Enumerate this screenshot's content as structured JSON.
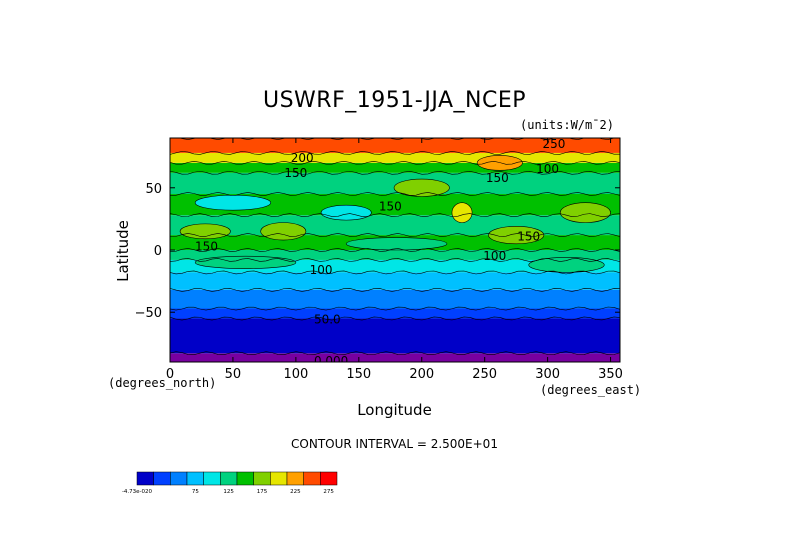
{
  "chart_data": {
    "type": "heatmap",
    "title": "USWRF_1951-JJA_NCEP",
    "units": "(units:W/m^2)",
    "units_display": "(units:W/m¯2)",
    "xlabel": "Longitude",
    "ylabel": "Latitude",
    "x_unit_label": "(degrees_east)",
    "y_unit_label": "(degrees_north)",
    "xlim": [
      0,
      357.5
    ],
    "ylim": [
      -90,
      90
    ],
    "x_ticks": [
      "0",
      "50",
      "100",
      "150",
      "200",
      "250",
      "300",
      "350"
    ],
    "x_tick_values": [
      0,
      50,
      100,
      150,
      200,
      250,
      300,
      350
    ],
    "y_ticks": [
      "50",
      "0",
      "-50"
    ],
    "y_tick_values": [
      50,
      0,
      -50
    ],
    "contour_interval_text": "CONTOUR INTERVAL = 2.500E+01",
    "contour_labels": [
      {
        "text": "250",
        "lon": 305,
        "lat": 85
      },
      {
        "text": "200",
        "lon": 105,
        "lat": 74
      },
      {
        "text": "150",
        "lon": 100,
        "lat": 62
      },
      {
        "text": "150",
        "lon": 175,
        "lat": 35
      },
      {
        "text": "150",
        "lon": 260,
        "lat": 58
      },
      {
        "text": "150",
        "lon": 29,
        "lat": 3
      },
      {
        "text": "150",
        "lon": 285,
        "lat": 11
      },
      {
        "text": "100",
        "lon": 120,
        "lat": -16
      },
      {
        "text": "100",
        "lon": 258,
        "lat": -5
      },
      {
        "text": "100",
        "lon": 300,
        "lat": 65
      },
      {
        "text": "50.0",
        "lon": 125,
        "lat": -56
      },
      {
        "text": "0.000",
        "lon": 128,
        "lat": -89
      }
    ],
    "lat_bands": [
      {
        "lat_from": -90,
        "lat_to": -83,
        "value": -1
      },
      {
        "lat_from": -83,
        "lat_to": -55,
        "value": 20
      },
      {
        "lat_from": -55,
        "lat_to": -47,
        "value": 40
      },
      {
        "lat_from": -47,
        "lat_to": -32,
        "value": 70
      },
      {
        "lat_from": -32,
        "lat_to": -18,
        "value": 90
      },
      {
        "lat_from": -18,
        "lat_to": -8,
        "value": 110
      },
      {
        "lat_from": -8,
        "lat_to": 0,
        "value": 135
      },
      {
        "lat_from": 0,
        "lat_to": 12,
        "value": 160
      },
      {
        "lat_from": 12,
        "lat_to": 28,
        "value": 145
      },
      {
        "lat_from": 28,
        "lat_to": 45,
        "value": 160
      },
      {
        "lat_from": 45,
        "lat_to": 62,
        "value": 145
      },
      {
        "lat_from": 62,
        "lat_to": 70,
        "value": 165
      },
      {
        "lat_from": 70,
        "lat_to": 78,
        "value": 205
      },
      {
        "lat_from": 78,
        "lat_to": 90,
        "value": 270
      }
    ],
    "patches": [
      {
        "lon": 262,
        "lat": 70,
        "rlon": 18,
        "rlat": 6,
        "value": 230
      },
      {
        "lon": 200,
        "lat": 50,
        "rlon": 22,
        "rlat": 7,
        "value": 190
      },
      {
        "lon": 232,
        "lat": 30,
        "rlon": 8,
        "rlat": 8,
        "value": 200
      },
      {
        "lon": 90,
        "lat": 15,
        "rlon": 18,
        "rlat": 7,
        "value": 190
      },
      {
        "lon": 28,
        "lat": 15,
        "rlon": 20,
        "rlat": 6,
        "value": 180
      },
      {
        "lon": 275,
        "lat": 12,
        "rlon": 22,
        "rlat": 7,
        "value": 185
      },
      {
        "lon": 50,
        "lat": 38,
        "rlon": 30,
        "rlat": 6,
        "value": 110
      },
      {
        "lon": 140,
        "lat": 30,
        "rlon": 20,
        "rlat": 6,
        "value": 120
      },
      {
        "lon": 330,
        "lat": 30,
        "rlon": 20,
        "rlat": 8,
        "value": 190
      },
      {
        "lon": 315,
        "lat": -12,
        "rlon": 30,
        "rlat": 6,
        "value": 125
      },
      {
        "lon": 60,
        "lat": -10,
        "rlon": 40,
        "rlat": 5,
        "value": 125
      },
      {
        "lon": 180,
        "lat": 5,
        "rlon": 40,
        "rlat": 5,
        "value": 135
      }
    ],
    "colorbar": {
      "colors": [
        "#0000c8",
        "#0040ff",
        "#0080ff",
        "#00c0ff",
        "#00e6e6",
        "#00d27f",
        "#00c000",
        "#80d000",
        "#e6e600",
        "#ffa000",
        "#ff4b00",
        "#ff0000"
      ],
      "tick_labels": [
        "-4.73e-020",
        "75",
        "125",
        "175",
        "225",
        "275"
      ]
    }
  }
}
